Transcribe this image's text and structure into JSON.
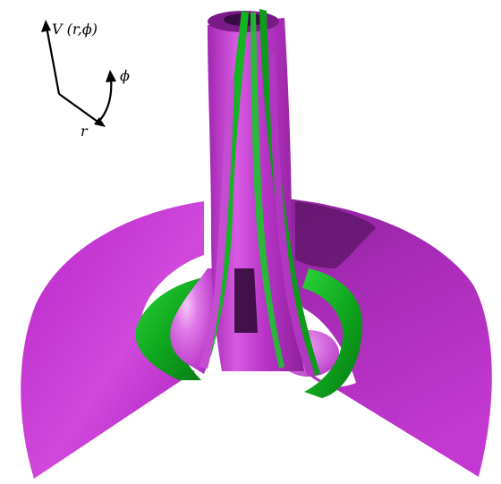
{
  "axes": {
    "vertical_label": "V (r,ϕ)",
    "angular_label": "ϕ",
    "radial_label": "r"
  },
  "surfaces": [
    {
      "name": "magenta-surface",
      "color": "#c62fd0"
    },
    {
      "name": "green-surface",
      "color": "#12a81f"
    }
  ]
}
